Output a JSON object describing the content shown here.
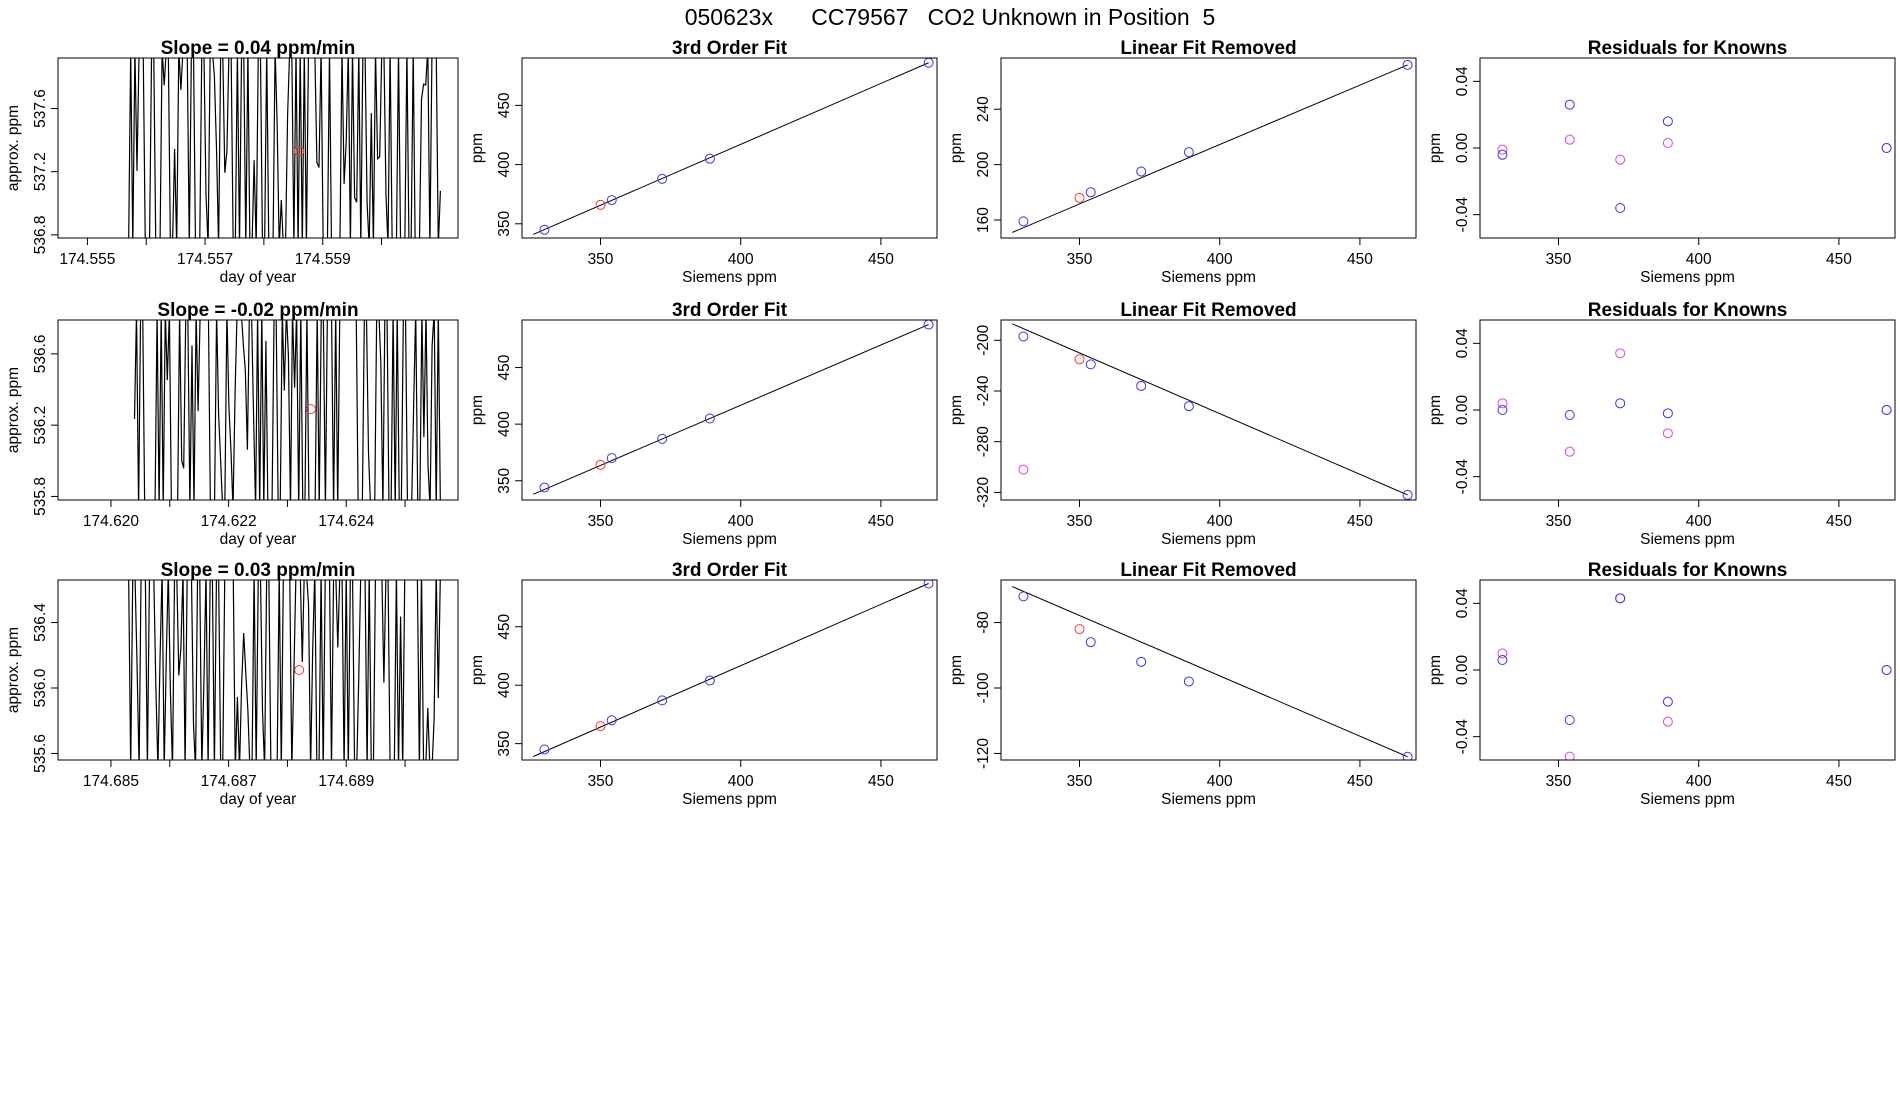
{
  "figure_title": "050623x      CC79567   CO2 Unknown in Position  5",
  "colors": {
    "axis": "#000000",
    "line": "#000000",
    "unknown_point": "#ff3333",
    "known_point": "#3333ff",
    "residual_alt": "#dd44dd"
  },
  "chart_data": [
    {
      "id": "ts-row1",
      "type": "line",
      "title": "Slope =  0.04  ppm/min",
      "xlabel": "day of year",
      "ylabel": "approx. ppm",
      "xlim": [
        174.5545,
        174.5613
      ],
      "ylim": [
        536.78,
        537.92
      ],
      "xticks": [
        174.555,
        174.557,
        174.559
      ],
      "xtick_labels": [
        "174.555",
        "174.557",
        "174.559"
      ],
      "xticks_minor": [
        174.556,
        174.558,
        174.56
      ],
      "yticks": [
        536.8,
        537.2,
        537.6
      ],
      "ytick_labels": [
        "536.8",
        "537.2",
        "537.6"
      ],
      "series_x_range": [
        174.5557,
        174.561
      ],
      "series_y_range": [
        536.78,
        537.92
      ],
      "mean_point": {
        "x": 174.5586,
        "y": 537.33
      }
    },
    {
      "id": "fit-row1",
      "type": "scatter",
      "title": "3rd Order Fit",
      "xlabel": "Siemens ppm",
      "ylabel": "ppm",
      "xlim": [
        322,
        470
      ],
      "ylim": [
        338,
        490
      ],
      "xticks": [
        350,
        400,
        450
      ],
      "xtick_labels": [
        "350",
        "400",
        "450"
      ],
      "yticks": [
        350,
        400,
        450
      ],
      "ytick_labels": [
        "350",
        "400",
        "450"
      ],
      "fit_line": [
        [
          326,
          341
        ],
        [
          467,
          486
        ]
      ],
      "knowns": [
        [
          330,
          345
        ],
        [
          354,
          370
        ],
        [
          372,
          388
        ],
        [
          389,
          405
        ],
        [
          467,
          486
        ]
      ],
      "unknown": [
        [
          350,
          366
        ]
      ]
    },
    {
      "id": "lin-row1",
      "type": "scatter",
      "title": "Linear Fit Removed",
      "xlabel": "Siemens ppm",
      "ylabel": "ppm",
      "xlim": [
        322,
        470
      ],
      "ylim": [
        147,
        277
      ],
      "xticks": [
        350,
        400,
        450
      ],
      "xtick_labels": [
        "350",
        "400",
        "450"
      ],
      "yticks": [
        160,
        200,
        240
      ],
      "ytick_labels": [
        "160",
        "200",
        "240"
      ],
      "fit_line": [
        [
          326,
          151
        ],
        [
          467,
          272
        ]
      ],
      "knowns": [
        [
          330,
          159
        ],
        [
          354,
          180
        ],
        [
          372,
          195
        ],
        [
          389,
          209
        ],
        [
          467,
          272
        ]
      ],
      "unknown": [
        [
          350,
          176
        ]
      ]
    },
    {
      "id": "res-row1",
      "type": "scatter",
      "title": "Residuals for Knowns",
      "xlabel": "Siemens ppm",
      "ylabel": "ppm",
      "xlim": [
        322,
        470
      ],
      "ylim": [
        -0.054,
        0.054
      ],
      "xticks": [
        350,
        400,
        450
      ],
      "xtick_labels": [
        "350",
        "400",
        "450"
      ],
      "yticks": [
        -0.04,
        0.0,
        0.04
      ],
      "ytick_labels": [
        "-0.04",
        "0.00",
        "0.04"
      ],
      "knowns": [
        [
          330,
          -0.004
        ],
        [
          354,
          0.026
        ],
        [
          372,
          -0.036
        ],
        [
          389,
          0.016
        ],
        [
          467,
          0.0
        ]
      ],
      "alt": [
        [
          330,
          -0.001
        ],
        [
          354,
          0.005
        ],
        [
          372,
          -0.007
        ],
        [
          389,
          0.003
        ],
        [
          467,
          0.0
        ]
      ]
    },
    {
      "id": "ts-row2",
      "type": "line",
      "title": "Slope =  -0.02  ppm/min",
      "xlabel": "day of year",
      "ylabel": "approx. ppm",
      "xlim": [
        174.6191,
        174.6259
      ],
      "ylim": [
        535.78,
        536.79
      ],
      "xticks": [
        174.62,
        174.622,
        174.624
      ],
      "xtick_labels": [
        "174.620",
        "174.622",
        "174.624"
      ],
      "xticks_minor": [
        174.621,
        174.623,
        174.625
      ],
      "yticks": [
        535.8,
        536.2,
        536.6
      ],
      "ytick_labels": [
        "535.8",
        "536.2",
        "536.6"
      ],
      "series_x_range": [
        174.6204,
        174.6256
      ],
      "series_y_range": [
        535.78,
        536.79
      ],
      "mean_point": {
        "x": 174.6234,
        "y": 536.29
      }
    },
    {
      "id": "fit-row2",
      "type": "scatter",
      "title": "3rd Order Fit",
      "xlabel": "Siemens ppm",
      "ylabel": "ppm",
      "xlim": [
        322,
        470
      ],
      "ylim": [
        333,
        492
      ],
      "xticks": [
        350,
        400,
        450
      ],
      "xtick_labels": [
        "350",
        "400",
        "450"
      ],
      "yticks": [
        350,
        400,
        450
      ],
      "ytick_labels": [
        "350",
        "400",
        "450"
      ],
      "fit_line": [
        [
          326,
          338
        ],
        [
          467,
          488
        ]
      ],
      "knowns": [
        [
          330,
          344
        ],
        [
          354,
          370
        ],
        [
          372,
          387
        ],
        [
          389,
          405
        ],
        [
          467,
          488
        ]
      ],
      "unknown": [
        [
          350,
          364
        ]
      ]
    },
    {
      "id": "lin-row2",
      "type": "scatter",
      "title": "Linear Fit Removed",
      "xlabel": "Siemens ppm",
      "ylabel": "ppm",
      "xlim": [
        322,
        470
      ],
      "ylim": [
        -326,
        -184
      ],
      "xticks": [
        350,
        400,
        450
      ],
      "xtick_labels": [
        "350",
        "400",
        "450"
      ],
      "yticks": [
        -320,
        -280,
        -240,
        -200
      ],
      "ytick_labels": [
        "-320",
        "-280",
        "-240",
        "-200"
      ],
      "fit_line": [
        [
          326,
          -187
        ],
        [
          467,
          -322
        ]
      ],
      "knowns": [
        [
          330,
          -197
        ],
        [
          354,
          -219
        ],
        [
          372,
          -236
        ],
        [
          389,
          -252
        ],
        [
          467,
          -322
        ]
      ],
      "unknown": [
        [
          350,
          -215
        ]
      ],
      "outlier": [
        [
          330,
          -302
        ]
      ]
    },
    {
      "id": "res-row2",
      "type": "scatter",
      "title": "Residuals for Knowns",
      "xlabel": "Siemens ppm",
      "ylabel": "ppm",
      "xlim": [
        322,
        470
      ],
      "ylim": [
        -0.054,
        0.054
      ],
      "xticks": [
        350,
        400,
        450
      ],
      "xtick_labels": [
        "350",
        "400",
        "450"
      ],
      "yticks": [
        -0.04,
        0.0,
        0.04
      ],
      "ytick_labels": [
        "-0.04",
        "0.00",
        "0.04"
      ],
      "knowns": [
        [
          330,
          0.0
        ],
        [
          354,
          -0.003
        ],
        [
          372,
          0.004
        ],
        [
          389,
          -0.002
        ],
        [
          467,
          0.0
        ]
      ],
      "alt": [
        [
          330,
          0.004
        ],
        [
          354,
          -0.025
        ],
        [
          372,
          0.034
        ],
        [
          389,
          -0.014
        ],
        [
          467,
          0.0
        ]
      ]
    },
    {
      "id": "ts-row3",
      "type": "line",
      "title": "Slope =  0.03  ppm/min",
      "xlabel": "day of year",
      "ylabel": "approx. ppm",
      "xlim": [
        174.6841,
        174.6909
      ],
      "ylim": [
        535.56,
        536.66
      ],
      "xticks": [
        174.685,
        174.687,
        174.689
      ],
      "xtick_labels": [
        "174.685",
        "174.687",
        "174.689"
      ],
      "xticks_minor": [
        174.686,
        174.688,
        174.69
      ],
      "yticks": [
        535.6,
        536.0,
        536.4
      ],
      "ytick_labels": [
        "535.6",
        "536.0",
        "536.4"
      ],
      "series_x_range": [
        174.6853,
        174.6906
      ],
      "series_y_range": [
        535.56,
        536.66
      ],
      "mean_point": {
        "x": 174.6882,
        "y": 536.11
      }
    },
    {
      "id": "fit-row3",
      "type": "scatter",
      "title": "3rd Order Fit",
      "xlabel": "Siemens ppm",
      "ylabel": "ppm",
      "xlim": [
        322,
        470
      ],
      "ylim": [
        336,
        490
      ],
      "xticks": [
        350,
        400,
        450
      ],
      "xtick_labels": [
        "350",
        "400",
        "450"
      ],
      "yticks": [
        350,
        400,
        450
      ],
      "ytick_labels": [
        "350",
        "400",
        "450"
      ],
      "fit_line": [
        [
          326,
          339
        ],
        [
          467,
          487
        ]
      ],
      "knowns": [
        [
          330,
          345
        ],
        [
          354,
          370
        ],
        [
          372,
          387
        ],
        [
          389,
          404
        ],
        [
          467,
          487
        ]
      ],
      "unknown": [
        [
          350,
          365
        ]
      ]
    },
    {
      "id": "lin-row3",
      "type": "scatter",
      "title": "Linear Fit Removed",
      "xlabel": "Siemens ppm",
      "ylabel": "ppm",
      "xlim": [
        322,
        470
      ],
      "ylim": [
        -122,
        -67
      ],
      "xticks": [
        350,
        400,
        450
      ],
      "xtick_labels": [
        "350",
        "400",
        "450"
      ],
      "yticks": [
        -120,
        -100,
        -80
      ],
      "ytick_labels": [
        "-120",
        "-100",
        "-80"
      ],
      "fit_line": [
        [
          326,
          -69
        ],
        [
          467,
          -121
        ]
      ],
      "knowns": [
        [
          330,
          -72
        ],
        [
          354,
          -86
        ],
        [
          372,
          -92
        ],
        [
          389,
          -98
        ],
        [
          467,
          -121
        ]
      ],
      "unknown": [
        [
          350,
          -82
        ]
      ]
    },
    {
      "id": "res-row3",
      "type": "scatter",
      "title": "Residuals for Knowns",
      "xlabel": "Siemens ppm",
      "ylabel": "ppm",
      "xlim": [
        322,
        470
      ],
      "ylim": [
        -0.054,
        0.054
      ],
      "xticks": [
        350,
        400,
        450
      ],
      "xtick_labels": [
        "350",
        "400",
        "450"
      ],
      "yticks": [
        -0.04,
        0.0,
        0.04
      ],
      "ytick_labels": [
        "-0.04",
        "0.00",
        "0.04"
      ],
      "knowns": [
        [
          330,
          0.006
        ],
        [
          354,
          -0.03
        ],
        [
          372,
          0.043
        ],
        [
          389,
          -0.019
        ],
        [
          467,
          0.0
        ]
      ],
      "alt": [
        [
          330,
          0.01
        ],
        [
          354,
          -0.052
        ],
        [
          372,
          0.043
        ],
        [
          389,
          -0.031
        ],
        [
          467,
          0.0
        ]
      ]
    }
  ]
}
